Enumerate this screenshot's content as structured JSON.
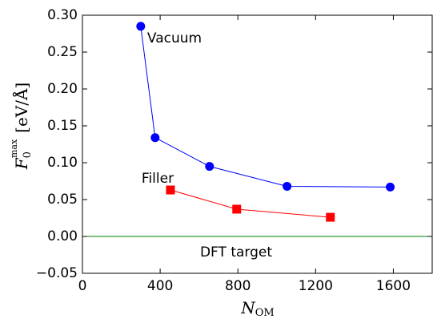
{
  "chart_data": {
    "type": "line",
    "xlabel": {
      "symbol": "N",
      "subscript": "OM"
    },
    "ylabel": {
      "symbol": "F",
      "subscript": "0",
      "superscript": "max",
      "unit": "[eV/Å]"
    },
    "series": [
      {
        "name": "Vacuum",
        "color": "#0000ff",
        "marker": "circle",
        "x": [
          300,
          374,
          654,
          1053,
          1584
        ],
        "values": [
          0.285,
          0.134,
          0.095,
          0.068,
          0.067
        ]
      },
      {
        "name": "Filler",
        "color": "#ff0000",
        "marker": "square",
        "x": [
          453,
          794,
          1276
        ],
        "values": [
          0.063,
          0.037,
          0.026
        ]
      }
    ],
    "reference_line": {
      "value": 0,
      "label": "DFT target",
      "color": "#008000"
    },
    "xlim": [
      0,
      1800
    ],
    "xticks": [
      0,
      400,
      800,
      1200,
      1600
    ],
    "ylim": [
      -0.05,
      0.3
    ],
    "yticks": [
      {
        "value": -0.05,
        "label": "−0.05"
      },
      {
        "value": 0,
        "label": "0.00"
      },
      {
        "value": 0.05,
        "label": "0.05"
      },
      {
        "value": 0.1,
        "label": "0.10"
      },
      {
        "value": 0.15,
        "label": "0.15"
      },
      {
        "value": 0.2,
        "label": "0.20"
      },
      {
        "value": 0.25,
        "label": "0.25"
      },
      {
        "value": 0.3,
        "label": "0.30"
      }
    ]
  }
}
